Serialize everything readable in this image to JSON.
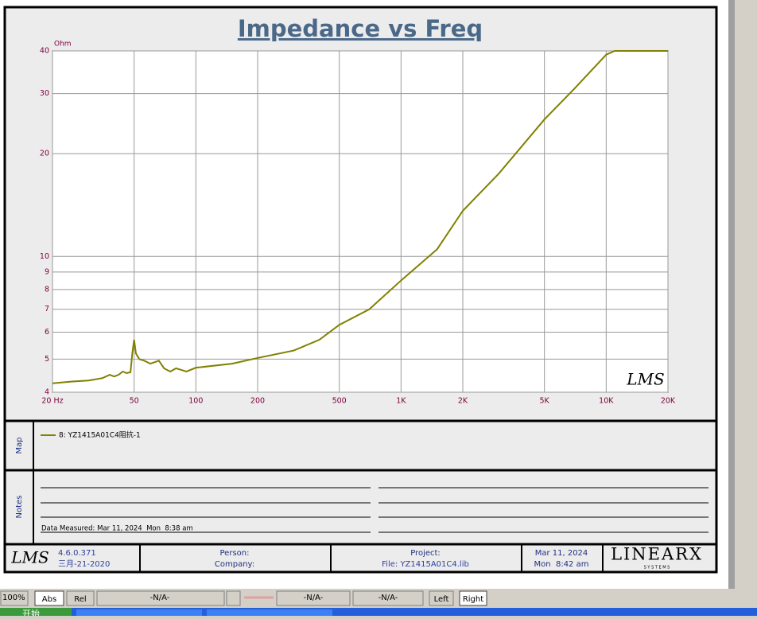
{
  "chart_data": {
    "type": "line",
    "title": "Impedance vs Freq",
    "y_unit_label": "Ohm",
    "plot_watermark": "LMS",
    "x": [
      20,
      25,
      30,
      35,
      38,
      40,
      42,
      44,
      46,
      48,
      49,
      50,
      51,
      53,
      56,
      60,
      63,
      66,
      70,
      75,
      80,
      90,
      100,
      150,
      200,
      300,
      400,
      500,
      700,
      1000,
      1500,
      2000,
      3000,
      5000,
      7000,
      10000,
      11000,
      20000
    ],
    "series": [
      {
        "name": "8: YZ1415A01C4阻抗-1",
        "color": "#808000",
        "values": [
          4.25,
          4.3,
          4.33,
          4.4,
          4.5,
          4.45,
          4.5,
          4.6,
          4.55,
          4.58,
          5.2,
          5.7,
          5.2,
          5.0,
          4.95,
          4.85,
          4.9,
          4.95,
          4.7,
          4.6,
          4.7,
          4.6,
          4.72,
          4.85,
          5.04,
          5.3,
          5.7,
          6.3,
          7.0,
          8.5,
          10.5,
          13.6,
          17.5,
          25.2,
          31,
          39,
          40,
          40
        ]
      }
    ],
    "xlim": [
      20,
      20000
    ],
    "ylim": [
      4,
      40
    ],
    "xscale": "log",
    "yscale": "log",
    "grid": true,
    "xticks": [
      {
        "value": 20,
        "label": "20 Hz"
      },
      50,
      100,
      200,
      500,
      {
        "value": 1000,
        "label": "1K"
      },
      {
        "value": 2000,
        "label": "2K"
      },
      {
        "value": 5000,
        "label": "5K"
      },
      {
        "value": 10000,
        "label": "10K"
      },
      {
        "value": 20000,
        "label": "20K"
      }
    ],
    "yticks": [
      4,
      5,
      6,
      7,
      8,
      9,
      10,
      20,
      30,
      40
    ]
  },
  "panels": {
    "map_label": "Map",
    "notes_label": "Notes",
    "data_measured": "Data Measured: Mar 11, 2024  Mon  8:38 am"
  },
  "footer": {
    "logo": "LMS",
    "version": "4.6.0.371",
    "build_date": "三月-21-2020",
    "person": "Person:",
    "company": "Company:",
    "project": "Project:",
    "file": "File: YZ1415A01C4.lib",
    "date": "Mar 11, 2024",
    "time": "Mon  8:42 am",
    "brand": "LINEARX",
    "brand_sub": "S Y S T E M S"
  },
  "status_bar": {
    "zoom": "100%",
    "abs": "Abs",
    "rel": "Rel",
    "field_1": "-N/A-",
    "field_2": "-N/A-",
    "field_3": "-N/A-",
    "left": "Left",
    "right": "Right"
  },
  "taskbar": {
    "start": "开始"
  }
}
